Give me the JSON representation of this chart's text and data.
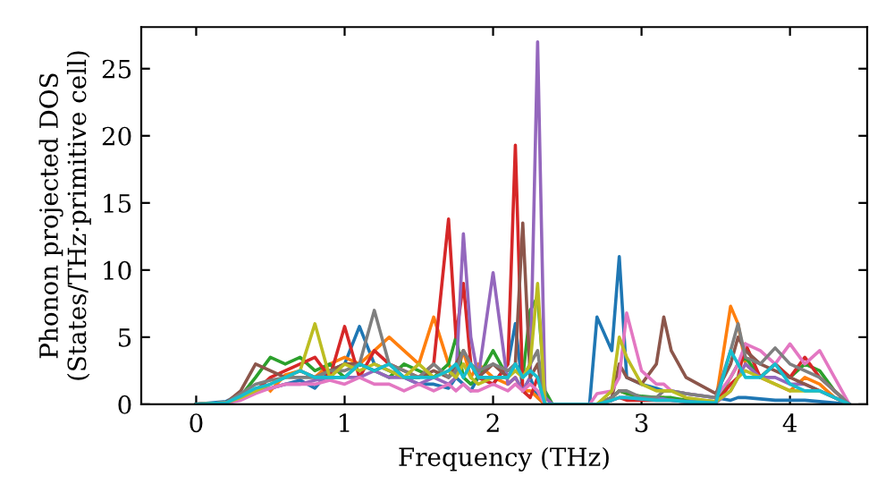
{
  "chart_data": {
    "type": "line",
    "xlabel": "Frequency (THz)",
    "ylabel": "Phonon projected DOS\n(States/THz·primitive cell)",
    "x": [
      0,
      0.2,
      0.3,
      0.4,
      0.5,
      0.6,
      0.7,
      0.8,
      0.9,
      1.0,
      1.1,
      1.2,
      1.3,
      1.4,
      1.5,
      1.6,
      1.7,
      1.75,
      1.8,
      1.85,
      1.9,
      2.0,
      2.1,
      2.15,
      2.2,
      2.25,
      2.3,
      2.35,
      2.4,
      2.65,
      2.7,
      2.8,
      2.85,
      2.9,
      3.0,
      3.1,
      3.15,
      3.2,
      3.3,
      3.5,
      3.6,
      3.65,
      3.7,
      3.8,
      3.9,
      4.0,
      4.1,
      4.2,
      4.3,
      4.4
    ],
    "series": [
      {
        "color": "#1f77b4",
        "values": [
          0,
          0.2,
          0.8,
          1,
          1.2,
          1.5,
          1.8,
          1.2,
          2.5,
          3,
          5.8,
          3,
          2.5,
          2,
          1.5,
          1.5,
          1.2,
          2,
          1.5,
          1,
          2,
          1.5,
          3,
          6,
          1,
          2,
          0.5,
          0,
          0,
          0,
          6.5,
          4,
          11,
          2,
          1.5,
          1.2,
          1,
          1,
          0.8,
          0.5,
          0.3,
          0.5,
          0.5,
          0.4,
          0.3,
          0.3,
          0.3,
          0.2,
          0.1,
          0
        ]
      },
      {
        "color": "#ff7f0e",
        "values": [
          null,
          null,
          null,
          null,
          1.0,
          2.2,
          2.5,
          2,
          3,
          3.5,
          3,
          4,
          5,
          4,
          3,
          6.5,
          3,
          2,
          4,
          2,
          3,
          2,
          1.5,
          2,
          1,
          1,
          0.5,
          0,
          0,
          0,
          0,
          0.5,
          1,
          0.8,
          0.5,
          0.5,
          0.5,
          0.4,
          0.3,
          0.2,
          7.3,
          6,
          3,
          2,
          1.5,
          1,
          2,
          1.5,
          0.5,
          0
        ]
      },
      {
        "color": "#2ca02c",
        "values": [
          0,
          0.1,
          0.6,
          2,
          3.5,
          3,
          3.5,
          2.5,
          3,
          2,
          3,
          2.5,
          2,
          3,
          2.5,
          2,
          3,
          5,
          2,
          1.5,
          2,
          4,
          2,
          3,
          2,
          7,
          8,
          1,
          0,
          0,
          0,
          0.5,
          1,
          0.8,
          0.6,
          0.5,
          0.5,
          0.5,
          0.3,
          0.2,
          2,
          3,
          3.5,
          2,
          3,
          2,
          3,
          2.5,
          1,
          0
        ]
      },
      {
        "color": "#d62728",
        "values": [
          0,
          0.1,
          0.5,
          1,
          2,
          2.5,
          3,
          3.5,
          2,
          5.8,
          2,
          4,
          3,
          2.5,
          2,
          3,
          13.8,
          5,
          9,
          3,
          2,
          1.5,
          3,
          19.3,
          1,
          0.5,
          2,
          0,
          0,
          0,
          0,
          0.3,
          0.5,
          0.3,
          0.3,
          0.3,
          0.3,
          0.3,
          0.2,
          0.1,
          1.5,
          2,
          4.5,
          2,
          3,
          2,
          3.5,
          2,
          1,
          0
        ]
      },
      {
        "color": "#9467bd",
        "values": [
          0,
          0.1,
          0.4,
          1,
          1.2,
          1.5,
          1.5,
          1.8,
          2,
          2,
          2,
          2.5,
          2,
          2,
          1.5,
          2,
          1.5,
          2,
          12.7,
          5,
          2,
          9.8,
          1.5,
          2,
          1,
          2,
          27,
          0.5,
          0,
          0,
          0,
          0.3,
          0.5,
          0.5,
          0.4,
          0.4,
          0.4,
          0.3,
          0.2,
          0.1,
          1,
          2,
          3,
          2,
          2,
          1.5,
          1.5,
          1,
          0.5,
          0
        ]
      },
      {
        "color": "#8c564b",
        "values": [
          0,
          0.1,
          1,
          3,
          2.5,
          2,
          2.5,
          2,
          2.5,
          3,
          3,
          2.5,
          3,
          2,
          2,
          2.5,
          2,
          3,
          4,
          3,
          2,
          3,
          2,
          3,
          13.5,
          2,
          3,
          0,
          0,
          0,
          0,
          0.5,
          3,
          2,
          1.5,
          3,
          6.5,
          4,
          2,
          0.8,
          3,
          5,
          4,
          3,
          2.5,
          2,
          1.5,
          1,
          0.5,
          0
        ]
      },
      {
        "color": "#e377c2",
        "values": [
          0,
          0.1,
          0.3,
          0.8,
          1.2,
          1.5,
          1.5,
          1.5,
          1.8,
          1.5,
          2,
          1.5,
          1.5,
          1,
          1.5,
          1,
          1.5,
          1,
          1.5,
          1,
          1,
          1.5,
          1,
          1.5,
          1,
          1.5,
          1,
          0,
          0,
          0,
          0.8,
          1,
          2,
          6.8,
          2.5,
          1.5,
          1.5,
          1,
          0.8,
          0.5,
          2,
          3,
          4.5,
          4,
          3,
          4.5,
          3,
          4,
          2,
          0
        ]
      },
      {
        "color": "#7f7f7f",
        "values": [
          0,
          0.1,
          0.8,
          1.5,
          1.8,
          2,
          2,
          2,
          2.5,
          2.5,
          3,
          7,
          3,
          2.5,
          2,
          3,
          2,
          2.5,
          4,
          3,
          2.5,
          3,
          2.5,
          3,
          2,
          3,
          4,
          0,
          0,
          0,
          0,
          0.5,
          1,
          1,
          0.5,
          0.5,
          1,
          1,
          0.8,
          0.5,
          4,
          6,
          3.5,
          3,
          4.2,
          3,
          2.5,
          2,
          1,
          0
        ]
      },
      {
        "color": "#bcbd22",
        "values": [
          0,
          0.1,
          0.5,
          1,
          1.5,
          2,
          2.5,
          6,
          2,
          3,
          2.5,
          3,
          2.5,
          2,
          3,
          2,
          2.5,
          2,
          3,
          2,
          1.5,
          2,
          2,
          2.5,
          2,
          3,
          9,
          0,
          0,
          0,
          0,
          1,
          5,
          3.5,
          1.5,
          1,
          1,
          1,
          0.5,
          0.2,
          1,
          2,
          2.5,
          2,
          1.5,
          1,
          1,
          1,
          null,
          null
        ]
      },
      {
        "color": "#17becf",
        "values": [
          0,
          0.1,
          0.6,
          1.2,
          1.5,
          2,
          2.5,
          2,
          2,
          2,
          3,
          2.5,
          3,
          2,
          2,
          2,
          2.5,
          3,
          2,
          3,
          2,
          2,
          2,
          3,
          2,
          2.5,
          2,
          0,
          0,
          0,
          0,
          0.3,
          0.5,
          0.5,
          0.4,
          0.3,
          0.3,
          0.3,
          0.2,
          0.1,
          4,
          3,
          2,
          2,
          3,
          1.5,
          1,
          1,
          0.5,
          0
        ]
      }
    ],
    "xlim": [
      -0.37,
      4.52
    ],
    "ylim": [
      0,
      28.1
    ],
    "xticks": [
      0,
      1,
      2,
      3,
      4
    ],
    "yticks": [
      0,
      5,
      10,
      15,
      20,
      25
    ],
    "grid": false
  }
}
